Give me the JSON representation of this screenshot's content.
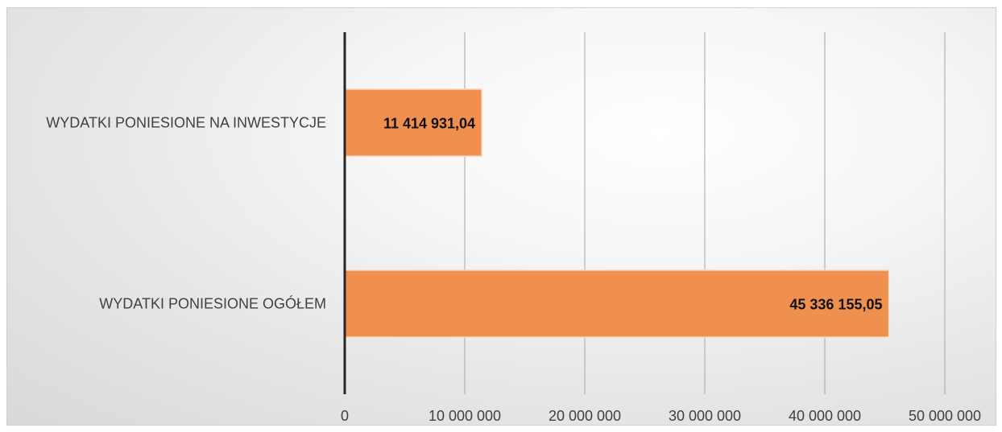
{
  "chart_data": {
    "type": "bar",
    "orientation": "horizontal",
    "categories": [
      "WYDATKI PONIESIONE NA INWESTYCJE",
      "WYDATKI PONIESIONE OGÓŁEM"
    ],
    "values": [
      11414931.04,
      45336155.05
    ],
    "data_labels": [
      "11 414 931,04",
      "45 336 155,05"
    ],
    "xticks": [
      0,
      10000000,
      20000000,
      30000000,
      40000000,
      50000000
    ],
    "xtick_labels": [
      "0",
      "10 000 000",
      "20 000 000",
      "30 000 000",
      "40 000 000",
      "50 000 000"
    ],
    "xlim": [
      0,
      50000000
    ],
    "title": "",
    "xlabel": "",
    "ylabel": "",
    "grid": true,
    "legend": "none",
    "bar_color": "#F0904F"
  }
}
